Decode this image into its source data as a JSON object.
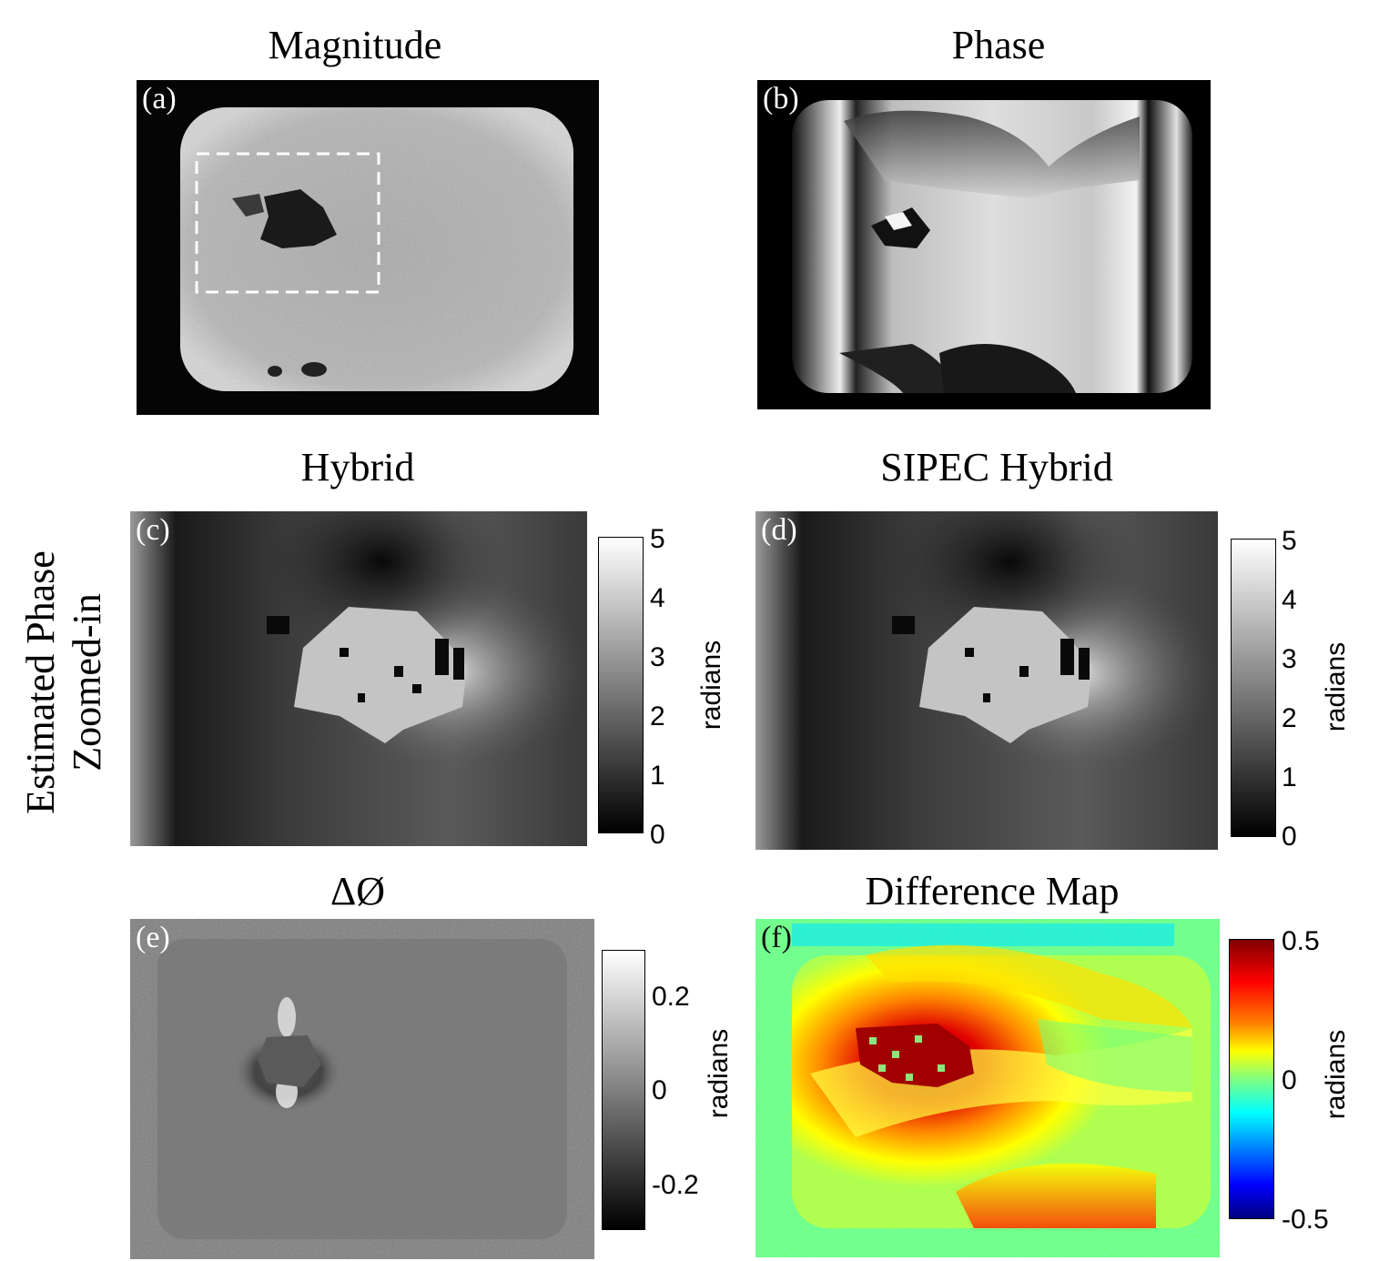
{
  "titles": {
    "magnitude": "Magnitude",
    "phase": "Phase",
    "hybrid": "Hybrid",
    "sipec": "SIPEC Hybrid",
    "delta": "ΔØ",
    "difference": "Difference Map"
  },
  "row_label": {
    "line1": "Estimated Phase",
    "line2": "Zoomed-in"
  },
  "panel_labels": {
    "a": "(a)",
    "b": "(b)",
    "c": "(c)",
    "d": "(d)",
    "e": "(e)",
    "f": "(f)"
  },
  "colorbars": {
    "hybrid": {
      "unit": "radians",
      "ticks": [
        "5",
        "4",
        "3",
        "2",
        "1",
        "0"
      ]
    },
    "sipec": {
      "unit": "radians",
      "ticks": [
        "5",
        "4",
        "3",
        "2",
        "1",
        "0"
      ]
    },
    "delta": {
      "unit": "radians",
      "ticks": [
        "0.2",
        "0",
        "-0.2"
      ]
    },
    "difference": {
      "unit": "radians",
      "ticks": [
        "0.5",
        "0",
        "-0.5"
      ]
    }
  },
  "colors": {
    "jet_dark_red": "#800000",
    "jet_red": "#ff0000",
    "jet_yellow": "#ffff00",
    "jet_green": "#80ff80",
    "jet_cyan": "#00ffff",
    "jet_blue": "#0000ff",
    "jet_dark_blue": "#000080"
  }
}
